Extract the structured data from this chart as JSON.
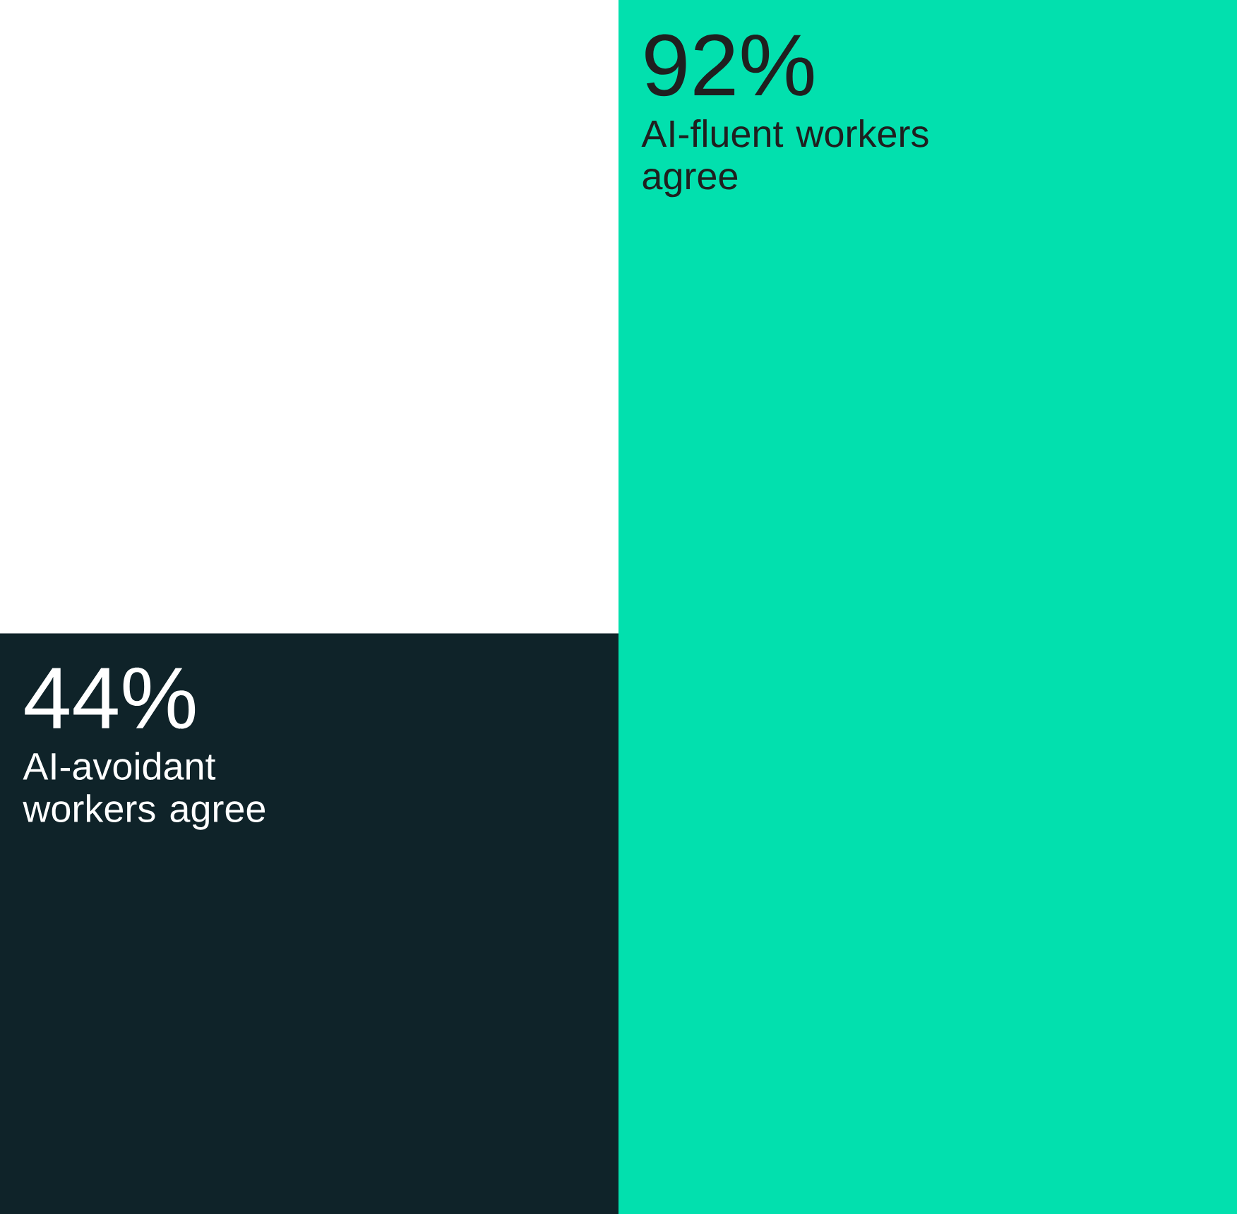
{
  "chart_data": {
    "type": "bar",
    "categories": [
      "AI-avoidant workers agree",
      "AI-fluent workers agree"
    ],
    "values": [
      44,
      92
    ],
    "value_labels": [
      "44%",
      "92%"
    ],
    "colors": [
      "#0f2329",
      "#02e0ae"
    ],
    "ylim": [
      0,
      92
    ],
    "tick_labels": false
  }
}
